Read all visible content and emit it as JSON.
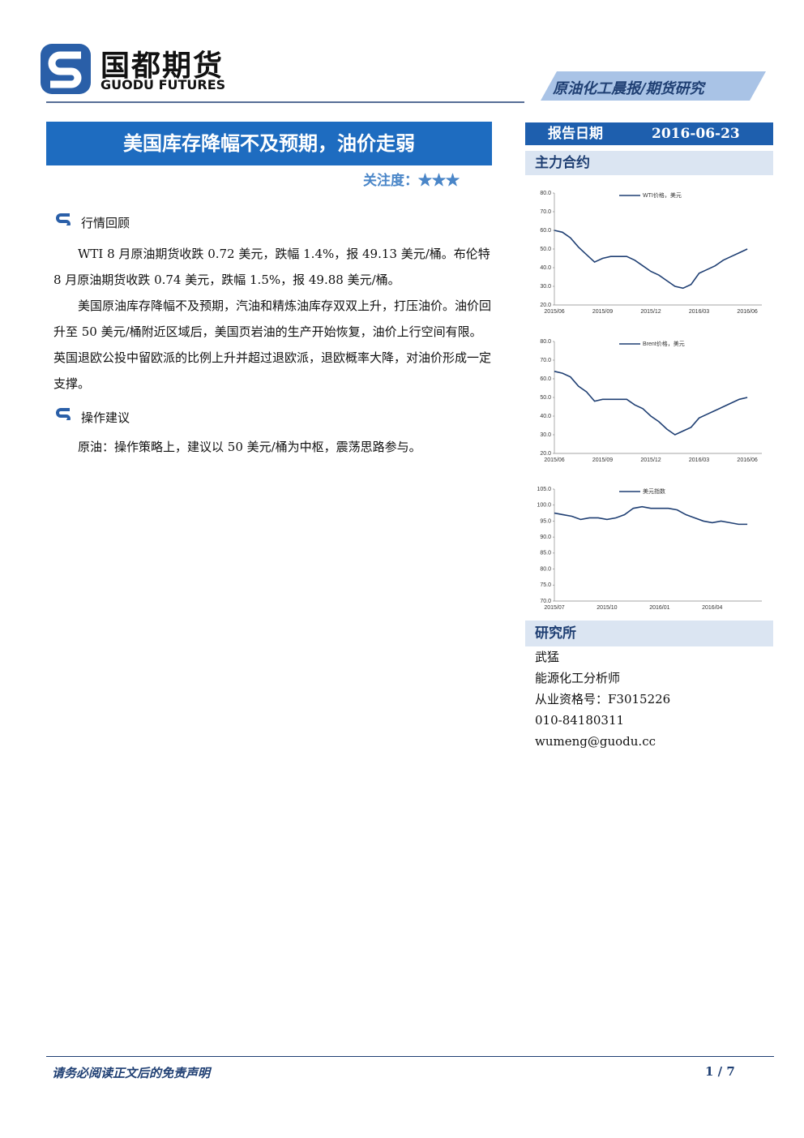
{
  "header": {
    "logo_cn": "国都期货",
    "logo_en": "GUODU FUTURES",
    "banner": "原油化工晨报/期货研究"
  },
  "title": "美国库存降幅不及预期，油价走弱",
  "attention": {
    "label": "关注度：",
    "stars": "★★★"
  },
  "sections": [
    {
      "heading": "行情回顾",
      "paragraphs": [
        "WTI 8 月原油期货收跌 0.72 美元，跌幅 1.4%，报 49.13 美元/桶。布伦特 8 月原油期货收跌 0.74 美元，跌幅 1.5%，报 49.88 美元/桶。",
        "美国原油库存降幅不及预期，汽油和精炼油库存双双上升，打压油价。油价回升至 50 美元/桶附近区域后，美国页岩油的生产开始恢复，油价上行空间有限。英国退欧公投中留欧派的比例上升并超过退欧派，退欧概率大降，对油价形成一定支撑。"
      ]
    },
    {
      "heading": "操作建议",
      "paragraphs": [
        "原油：操作策略上，建议以 50 美元/桶为中枢，震荡思路参与。"
      ]
    }
  ],
  "sidebar": {
    "date_label": "报告日期",
    "date": "2016-06-23",
    "contracts_heading": "主力合约",
    "institute_heading": "研究所",
    "contact": [
      "武猛",
      "能源化工分析师",
      "从业资格号：F3015226",
      "010-84180311",
      "wumeng@guodu.cc"
    ]
  },
  "footer": {
    "disclaimer": "请务必阅读正文后的免责声明",
    "page": "1 / 7"
  },
  "chart_data": [
    {
      "type": "line",
      "categories": [
        "2015/06",
        null,
        null,
        null,
        null,
        null,
        "2015/09",
        null,
        null,
        null,
        null,
        null,
        "2015/12",
        null,
        null,
        null,
        null,
        null,
        "2016/03",
        null,
        null,
        null,
        null,
        null,
        "2016/06"
      ],
      "series": [
        {
          "name": "WTI价格，美元",
          "color": "#1f3f73",
          "values": [
            60,
            59,
            56,
            51,
            47,
            43,
            45,
            46,
            46,
            46,
            44,
            41,
            38,
            36,
            33,
            30,
            29,
            31,
            37,
            39,
            41,
            44,
            46,
            48,
            50
          ]
        }
      ],
      "ylim": [
        20,
        80
      ],
      "yticks": [
        {
          "value": 20,
          "label": "20.0"
        },
        {
          "value": 30,
          "label": "30.0"
        },
        {
          "value": 40,
          "label": "40.0"
        },
        {
          "value": 50,
          "label": "50.0"
        },
        {
          "value": 60,
          "label": "60.0"
        },
        {
          "value": 70,
          "label": "70.0"
        },
        {
          "value": 80,
          "label": "80.0"
        }
      ]
    },
    {
      "type": "line",
      "categories": [
        "2015/06",
        null,
        null,
        null,
        null,
        null,
        "2015/09",
        null,
        null,
        null,
        null,
        null,
        "2015/12",
        null,
        null,
        null,
        null,
        null,
        "2016/03",
        null,
        null,
        null,
        null,
        null,
        "2016/06"
      ],
      "series": [
        {
          "name": "Brent价格，美元",
          "color": "#1f3f73",
          "values": [
            64,
            63,
            61,
            56,
            53,
            48,
            49,
            49,
            49,
            49,
            46,
            44,
            40,
            37,
            33,
            30,
            32,
            34,
            39,
            41,
            43,
            45,
            47,
            49,
            50
          ]
        }
      ],
      "ylim": [
        20,
        80
      ],
      "yticks": [
        {
          "value": 20,
          "label": "20.0"
        },
        {
          "value": 30,
          "label": "30.0"
        },
        {
          "value": 40,
          "label": "40.0"
        },
        {
          "value": 50,
          "label": "50.0"
        },
        {
          "value": 60,
          "label": "60.0"
        },
        {
          "value": 70,
          "label": "70.0"
        },
        {
          "value": 80,
          "label": "80.0"
        }
      ]
    },
    {
      "type": "line",
      "categories": [
        "2015/07",
        null,
        null,
        null,
        null,
        null,
        "2015/10",
        null,
        null,
        null,
        null,
        null,
        "2016/01",
        null,
        null,
        null,
        null,
        null,
        "2016/04",
        null,
        null,
        null,
        null
      ],
      "series": [
        {
          "name": "美元指数",
          "color": "#1f3f73",
          "values": [
            97.5,
            97,
            96.5,
            95.5,
            96,
            96,
            95.5,
            96,
            97,
            99,
            99.5,
            99,
            99,
            99,
            98.5,
            97,
            96,
            95,
            94.5,
            95,
            94.5,
            94,
            94
          ]
        }
      ],
      "ylim": [
        70,
        105
      ],
      "yticks": [
        {
          "value": 70,
          "label": "70.0"
        },
        {
          "value": 75,
          "label": "75.0"
        },
        {
          "value": 80,
          "label": "80.0"
        },
        {
          "value": 85,
          "label": "85.0"
        },
        {
          "value": 90,
          "label": "90.0"
        },
        {
          "value": 95,
          "label": "95.0"
        },
        {
          "value": 100,
          "label": "100.0"
        },
        {
          "value": 105,
          "label": "105.0"
        }
      ]
    }
  ]
}
